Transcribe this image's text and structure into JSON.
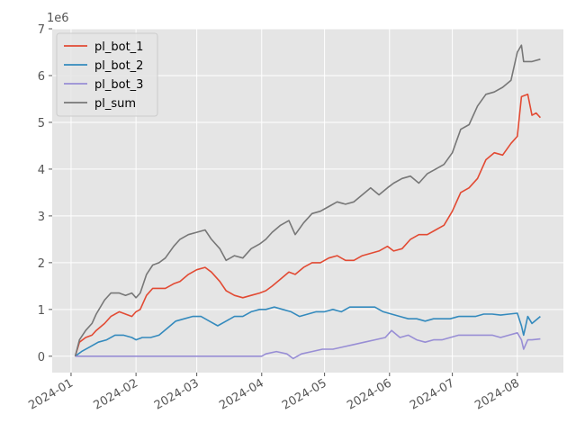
{
  "chart_data": {
    "type": "line",
    "style": "ggplot",
    "grid": true,
    "legend_position": "top-left",
    "exponent_label": "1e6",
    "ylim": [
      -0.35,
      7.0
    ],
    "xlim": [
      "2023-12-23",
      "2024-08-23"
    ],
    "y_ticks": [
      0,
      1,
      2,
      3,
      4,
      5,
      6,
      7
    ],
    "y_tick_labels": [
      "0",
      "1",
      "2",
      "3",
      "4",
      "5",
      "6",
      "7"
    ],
    "x_ticks": [
      "2024-01-01",
      "2024-02-01",
      "2024-03-01",
      "2024-04-01",
      "2024-05-01",
      "2024-06-01",
      "2024-07-01",
      "2024-08-01"
    ],
    "x_tick_labels": [
      "2024-01",
      "2024-02",
      "2024-03",
      "2024-04",
      "2024-05",
      "2024-06",
      "2024-07",
      "2024-08"
    ],
    "series": [
      {
        "name": "pl_bot_1",
        "color": "#E24A33",
        "x": [
          "2024-01-03",
          "2024-01-05",
          "2024-01-08",
          "2024-01-11",
          "2024-01-13",
          "2024-01-17",
          "2024-01-20",
          "2024-01-24",
          "2024-01-27",
          "2024-01-30",
          "2024-02-01",
          "2024-02-03",
          "2024-02-06",
          "2024-02-09",
          "2024-02-12",
          "2024-02-15",
          "2024-02-19",
          "2024-02-22",
          "2024-02-26",
          "2024-03-01",
          "2024-03-05",
          "2024-03-08",
          "2024-03-12",
          "2024-03-15",
          "2024-03-19",
          "2024-03-23",
          "2024-03-27",
          "2024-03-31",
          "2024-04-03",
          "2024-04-06",
          "2024-04-10",
          "2024-04-14",
          "2024-04-17",
          "2024-04-21",
          "2024-04-25",
          "2024-04-29",
          "2024-05-03",
          "2024-05-07",
          "2024-05-11",
          "2024-05-15",
          "2024-05-19",
          "2024-05-23",
          "2024-05-27",
          "2024-05-31",
          "2024-06-03",
          "2024-06-07",
          "2024-06-11",
          "2024-06-15",
          "2024-06-19",
          "2024-06-23",
          "2024-06-27",
          "2024-07-01",
          "2024-07-05",
          "2024-07-09",
          "2024-07-13",
          "2024-07-17",
          "2024-07-21",
          "2024-07-25",
          "2024-07-29",
          "2024-08-01",
          "2024-08-03",
          "2024-08-06",
          "2024-08-08",
          "2024-08-10",
          "2024-08-12"
        ],
        "y": [
          0.0,
          0.3,
          0.4,
          0.45,
          0.55,
          0.7,
          0.85,
          0.95,
          0.9,
          0.85,
          0.95,
          1.0,
          1.3,
          1.45,
          1.45,
          1.45,
          1.55,
          1.6,
          1.75,
          1.85,
          1.9,
          1.8,
          1.6,
          1.4,
          1.3,
          1.25,
          1.3,
          1.35,
          1.4,
          1.5,
          1.65,
          1.8,
          1.75,
          1.9,
          2.0,
          2.0,
          2.1,
          2.15,
          2.05,
          2.05,
          2.15,
          2.2,
          2.25,
          2.35,
          2.25,
          2.3,
          2.5,
          2.6,
          2.6,
          2.7,
          2.8,
          3.1,
          3.5,
          3.6,
          3.8,
          4.2,
          4.35,
          4.3,
          4.55,
          4.7,
          5.55,
          5.6,
          5.15,
          5.2,
          5.1
        ]
      },
      {
        "name": "pl_bot_2",
        "color": "#348ABD",
        "x": [
          "2024-01-03",
          "2024-01-06",
          "2024-01-10",
          "2024-01-14",
          "2024-01-18",
          "2024-01-22",
          "2024-01-26",
          "2024-01-30",
          "2024-02-01",
          "2024-02-04",
          "2024-02-08",
          "2024-02-12",
          "2024-02-16",
          "2024-02-20",
          "2024-02-24",
          "2024-02-28",
          "2024-03-03",
          "2024-03-07",
          "2024-03-11",
          "2024-03-15",
          "2024-03-19",
          "2024-03-23",
          "2024-03-27",
          "2024-03-31",
          "2024-04-03",
          "2024-04-07",
          "2024-04-11",
          "2024-04-15",
          "2024-04-19",
          "2024-04-23",
          "2024-04-27",
          "2024-05-01",
          "2024-05-05",
          "2024-05-09",
          "2024-05-13",
          "2024-05-17",
          "2024-05-21",
          "2024-05-25",
          "2024-05-29",
          "2024-06-02",
          "2024-06-06",
          "2024-06-10",
          "2024-06-14",
          "2024-06-18",
          "2024-06-22",
          "2024-06-26",
          "2024-06-30",
          "2024-07-04",
          "2024-07-08",
          "2024-07-12",
          "2024-07-16",
          "2024-07-20",
          "2024-07-24",
          "2024-07-28",
          "2024-08-01",
          "2024-08-03",
          "2024-08-04",
          "2024-08-06",
          "2024-08-08",
          "2024-08-12"
        ],
        "y": [
          0.0,
          0.1,
          0.2,
          0.3,
          0.35,
          0.45,
          0.45,
          0.4,
          0.35,
          0.4,
          0.4,
          0.45,
          0.6,
          0.75,
          0.8,
          0.85,
          0.85,
          0.75,
          0.65,
          0.75,
          0.85,
          0.85,
          0.95,
          1.0,
          1.0,
          1.05,
          1.0,
          0.95,
          0.85,
          0.9,
          0.95,
          0.95,
          1.0,
          0.95,
          1.05,
          1.05,
          1.05,
          1.05,
          0.95,
          0.9,
          0.85,
          0.8,
          0.8,
          0.75,
          0.8,
          0.8,
          0.8,
          0.85,
          0.85,
          0.85,
          0.9,
          0.9,
          0.88,
          0.9,
          0.92,
          0.65,
          0.45,
          0.85,
          0.7,
          0.85
        ]
      },
      {
        "name": "pl_bot_3",
        "color": "#988ED5",
        "x": [
          "2024-01-03",
          "2024-01-10",
          "2024-02-01",
          "2024-03-01",
          "2024-04-01",
          "2024-04-03",
          "2024-04-08",
          "2024-04-13",
          "2024-04-16",
          "2024-04-20",
          "2024-04-25",
          "2024-04-30",
          "2024-05-05",
          "2024-05-10",
          "2024-05-15",
          "2024-05-20",
          "2024-05-25",
          "2024-05-30",
          "2024-06-02",
          "2024-06-06",
          "2024-06-10",
          "2024-06-14",
          "2024-06-18",
          "2024-06-22",
          "2024-06-26",
          "2024-06-30",
          "2024-07-04",
          "2024-07-08",
          "2024-07-12",
          "2024-07-16",
          "2024-07-20",
          "2024-07-24",
          "2024-07-28",
          "2024-08-01",
          "2024-08-03",
          "2024-08-04",
          "2024-08-06",
          "2024-08-08",
          "2024-08-12"
        ],
        "y": [
          0.0,
          0.0,
          0.0,
          0.0,
          0.0,
          0.05,
          0.1,
          0.05,
          -0.05,
          0.05,
          0.1,
          0.15,
          0.15,
          0.2,
          0.25,
          0.3,
          0.35,
          0.4,
          0.55,
          0.4,
          0.45,
          0.35,
          0.3,
          0.35,
          0.35,
          0.4,
          0.45,
          0.45,
          0.45,
          0.45,
          0.45,
          0.4,
          0.45,
          0.5,
          0.35,
          0.15,
          0.35,
          0.35,
          0.37
        ]
      },
      {
        "name": "pl_sum",
        "color": "#777777",
        "x": [
          "2024-01-03",
          "2024-01-05",
          "2024-01-08",
          "2024-01-11",
          "2024-01-13",
          "2024-01-17",
          "2024-01-20",
          "2024-01-24",
          "2024-01-27",
          "2024-01-30",
          "2024-02-01",
          "2024-02-03",
          "2024-02-06",
          "2024-02-09",
          "2024-02-12",
          "2024-02-15",
          "2024-02-19",
          "2024-02-22",
          "2024-02-26",
          "2024-03-01",
          "2024-03-05",
          "2024-03-08",
          "2024-03-12",
          "2024-03-15",
          "2024-03-19",
          "2024-03-23",
          "2024-03-27",
          "2024-03-31",
          "2024-04-03",
          "2024-04-06",
          "2024-04-10",
          "2024-04-14",
          "2024-04-17",
          "2024-04-21",
          "2024-04-25",
          "2024-04-29",
          "2024-05-03",
          "2024-05-07",
          "2024-05-11",
          "2024-05-15",
          "2024-05-19",
          "2024-05-23",
          "2024-05-27",
          "2024-05-31",
          "2024-06-03",
          "2024-06-07",
          "2024-06-11",
          "2024-06-15",
          "2024-06-19",
          "2024-06-23",
          "2024-06-27",
          "2024-07-01",
          "2024-07-05",
          "2024-07-09",
          "2024-07-13",
          "2024-07-17",
          "2024-07-21",
          "2024-07-25",
          "2024-07-29",
          "2024-08-01",
          "2024-08-03",
          "2024-08-04",
          "2024-08-06",
          "2024-08-08",
          "2024-08-12"
        ],
        "y": [
          0.0,
          0.35,
          0.55,
          0.7,
          0.9,
          1.2,
          1.35,
          1.35,
          1.3,
          1.35,
          1.25,
          1.35,
          1.75,
          1.95,
          2.0,
          2.1,
          2.35,
          2.5,
          2.6,
          2.65,
          2.7,
          2.5,
          2.3,
          2.05,
          2.15,
          2.1,
          2.3,
          2.4,
          2.5,
          2.65,
          2.8,
          2.9,
          2.6,
          2.85,
          3.05,
          3.1,
          3.2,
          3.3,
          3.25,
          3.3,
          3.45,
          3.6,
          3.45,
          3.6,
          3.7,
          3.8,
          3.85,
          3.7,
          3.9,
          4.0,
          4.1,
          4.35,
          4.85,
          4.95,
          5.35,
          5.6,
          5.65,
          5.75,
          5.9,
          6.5,
          6.65,
          6.3,
          6.3,
          6.3,
          6.35
        ]
      }
    ]
  }
}
